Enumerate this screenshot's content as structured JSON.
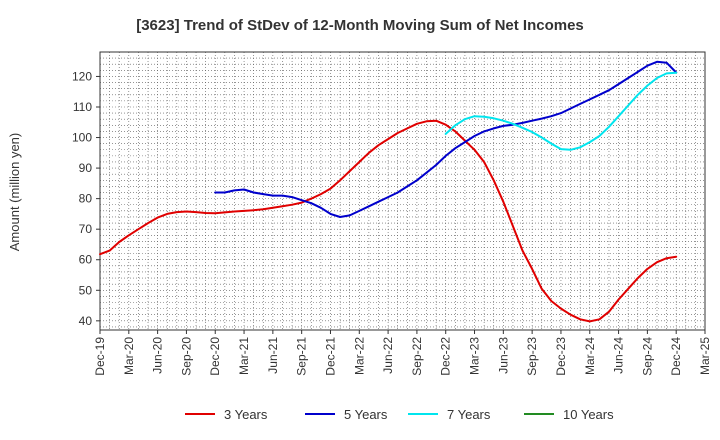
{
  "chart_data": {
    "type": "line",
    "title": "[3623]  Trend of StDev of 12-Month Moving Sum of Net Incomes",
    "ylabel": "Amount (million yen)",
    "xlabel": "",
    "ylim": [
      37,
      128
    ],
    "yticks": [
      40,
      50,
      60,
      70,
      80,
      90,
      100,
      110,
      120
    ],
    "xlim": [
      "2019-12",
      "2025-03"
    ],
    "xtick_labels": [
      "Dec-19",
      "Mar-20",
      "Jun-20",
      "Sep-20",
      "Dec-20",
      "Mar-21",
      "Jun-21",
      "Sep-21",
      "Dec-21",
      "Mar-22",
      "Jun-22",
      "Sep-22",
      "Dec-22",
      "Mar-23",
      "Jun-23",
      "Sep-23",
      "Dec-23",
      "Mar-24",
      "Jun-24",
      "Sep-24",
      "Dec-24",
      "Mar-25"
    ],
    "grid": true,
    "legend_position": "bottom",
    "series": [
      {
        "name": "3 Years",
        "color": "#e00000",
        "x": [
          "2019-12",
          "2020-01",
          "2020-02",
          "2020-03",
          "2020-04",
          "2020-05",
          "2020-06",
          "2020-07",
          "2020-08",
          "2020-09",
          "2020-10",
          "2020-11",
          "2020-12",
          "2021-01",
          "2021-02",
          "2021-03",
          "2021-04",
          "2021-05",
          "2021-06",
          "2021-07",
          "2021-08",
          "2021-09",
          "2021-10",
          "2021-11",
          "2021-12",
          "2022-01",
          "2022-02",
          "2022-03",
          "2022-04",
          "2022-05",
          "2022-06",
          "2022-07",
          "2022-08",
          "2022-09",
          "2022-10",
          "2022-11",
          "2022-12",
          "2023-01",
          "2023-02",
          "2023-03",
          "2023-04",
          "2023-05",
          "2023-06",
          "2023-07",
          "2023-08",
          "2023-09",
          "2023-10",
          "2023-11",
          "2023-12",
          "2024-01",
          "2024-02",
          "2024-03",
          "2024-04",
          "2024-05",
          "2024-06",
          "2024-07",
          "2024-08",
          "2024-09",
          "2024-10",
          "2024-11",
          "2024-12"
        ],
        "values": [
          61.8,
          63,
          65.8,
          68,
          70,
          72,
          73.8,
          75,
          75.6,
          75.8,
          75.6,
          75.3,
          75.2,
          75.5,
          75.8,
          76,
          76.2,
          76.5,
          77,
          77.5,
          78,
          78.7,
          80,
          81.5,
          83.3,
          86,
          89,
          92,
          95,
          97.5,
          99.5,
          101.5,
          103,
          104.5,
          105.3,
          105.5,
          104.2,
          102,
          99,
          96,
          92,
          86,
          79,
          71,
          63,
          57,
          50.5,
          46.5,
          44,
          42,
          40.5,
          39.8,
          40.5,
          43,
          47,
          50.5,
          54,
          57,
          59.2,
          60.5,
          61
        ]
      },
      {
        "name": "5 Years",
        "color": "#0000cc",
        "x": [
          "2020-12",
          "2021-01",
          "2021-02",
          "2021-03",
          "2021-04",
          "2021-05",
          "2021-06",
          "2021-07",
          "2021-08",
          "2021-09",
          "2021-10",
          "2021-11",
          "2021-12",
          "2022-01",
          "2022-02",
          "2022-03",
          "2022-04",
          "2022-05",
          "2022-06",
          "2022-07",
          "2022-08",
          "2022-09",
          "2022-10",
          "2022-11",
          "2022-12",
          "2023-01",
          "2023-02",
          "2023-03",
          "2023-04",
          "2023-05",
          "2023-06",
          "2023-07",
          "2023-08",
          "2023-09",
          "2023-10",
          "2023-11",
          "2023-12",
          "2024-01",
          "2024-02",
          "2024-03",
          "2024-04",
          "2024-05",
          "2024-06",
          "2024-07",
          "2024-08",
          "2024-09",
          "2024-10",
          "2024-11",
          "2024-12"
        ],
        "values": [
          82,
          82,
          82.7,
          83,
          82,
          81.5,
          81,
          81,
          80.5,
          79.5,
          78.5,
          77,
          75,
          74,
          74.5,
          76,
          77.5,
          79,
          80.5,
          82,
          84,
          86,
          88.5,
          91,
          94,
          96.5,
          98.5,
          100.5,
          102,
          103,
          103.8,
          104.2,
          104.8,
          105.5,
          106.2,
          107,
          108,
          109.5,
          111,
          112.5,
          114,
          115.5,
          117.5,
          119.5,
          121.5,
          123.5,
          124.8,
          124.5,
          121.3
        ]
      },
      {
        "name": "7 Years",
        "color": "#00e5ee",
        "x": [
          "2022-12",
          "2023-01",
          "2023-02",
          "2023-03",
          "2023-04",
          "2023-05",
          "2023-06",
          "2023-07",
          "2023-08",
          "2023-09",
          "2023-10",
          "2023-11",
          "2023-12",
          "2024-01",
          "2024-02",
          "2024-03",
          "2024-04",
          "2024-05",
          "2024-06",
          "2024-07",
          "2024-08",
          "2024-09",
          "2024-10",
          "2024-11",
          "2024-12"
        ],
        "values": [
          101.2,
          104,
          106,
          107,
          106.8,
          106.3,
          105.5,
          104.5,
          103.2,
          101.8,
          100,
          98,
          96.2,
          96,
          96.8,
          98.5,
          100.5,
          103.5,
          107,
          110.5,
          114,
          117,
          119.5,
          121,
          121.2
        ]
      },
      {
        "name": "10 Years",
        "color": "#228b22",
        "x": [],
        "values": []
      }
    ]
  }
}
